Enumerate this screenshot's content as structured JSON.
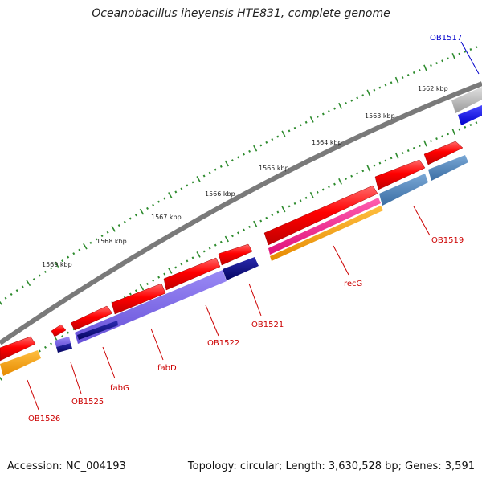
{
  "title": "Oceanobacillus iheyensis HTE831, complete genome",
  "footer": {
    "accession": "Accession: NC_004193",
    "topology": "Topology: circular; Length: 3,630,528 bp; Genes: 3,591"
  },
  "scale_labels": [
    "1562 kbp",
    "1563 kbp",
    "1564 kbp",
    "1565 kbp",
    "1566 kbp",
    "1567 kbp",
    "1568 kbp",
    "1569 kbp"
  ],
  "gene_labels": [
    {
      "text": "OB1517",
      "color": "#0000cc"
    },
    {
      "text": "OB1519",
      "color": "#cc0000"
    },
    {
      "text": "recG",
      "color": "#cc0000"
    },
    {
      "text": "OB1521",
      "color": "#cc0000"
    },
    {
      "text": "OB1522",
      "color": "#cc0000"
    },
    {
      "text": "fabD",
      "color": "#cc0000"
    },
    {
      "text": "fabG",
      "color": "#cc0000"
    },
    {
      "text": "OB1525",
      "color": "#cc0000"
    },
    {
      "text": "OB1526",
      "color": "#cc0000"
    }
  ],
  "colors": {
    "backbone": "#7a7a7a",
    "cds_forward": "#ff0000",
    "blast_magenta": "#ff1493",
    "blast_orange": "#ff9900",
    "blast_steelblue": "#4a7fb5",
    "blast_slateblue": "#7b68ee",
    "blast_navy": "#0a0a80",
    "blast_blue": "#0000ff",
    "blast_gray": "#b0b0b0",
    "scale_ticks": "#2e8b2e"
  }
}
